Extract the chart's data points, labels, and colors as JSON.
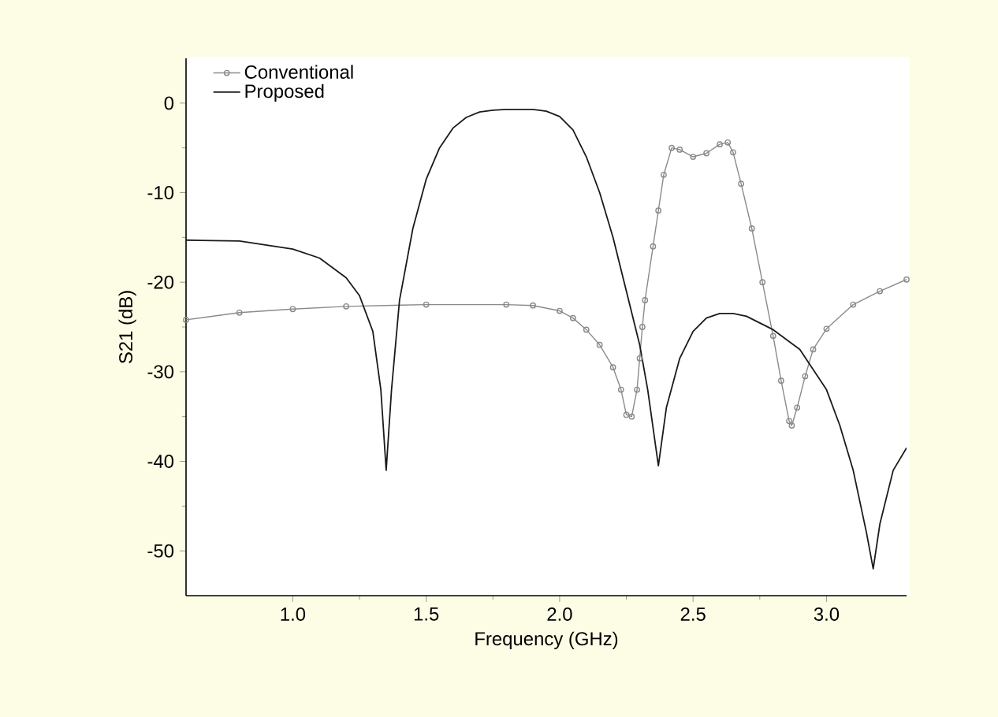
{
  "chart_data": {
    "type": "line",
    "xlabel": "Frequency (GHz)",
    "ylabel": "S21 (dB)",
    "xlim": [
      0.6,
      3.3
    ],
    "ylim": [
      -55,
      5
    ],
    "xticks": [
      {
        "value": 1,
        "label": "1.0"
      },
      {
        "value": 1.5,
        "label": "1.5"
      },
      {
        "value": 2,
        "label": "2.0"
      },
      {
        "value": 2.5,
        "label": "2.5"
      },
      {
        "value": 3,
        "label": "3.0"
      }
    ],
    "yticks": [
      0,
      -10,
      -20,
      -30,
      -40,
      -50
    ],
    "grid": false,
    "legend": "top left",
    "series": [
      {
        "name": "Conventional",
        "color": "#8a8a8a",
        "marker": "circle",
        "x": [
          0.6,
          0.8,
          1.0,
          1.2,
          1.5,
          1.8,
          1.9,
          2.0,
          2.05,
          2.1,
          2.15,
          2.2,
          2.23,
          2.25,
          2.27,
          2.29,
          2.3,
          2.31,
          2.32,
          2.35,
          2.37,
          2.39,
          2.42,
          2.45,
          2.5,
          2.55,
          2.6,
          2.63,
          2.65,
          2.68,
          2.72,
          2.76,
          2.8,
          2.83,
          2.86,
          2.87,
          2.89,
          2.92,
          2.95,
          3.0,
          3.1,
          3.2,
          3.3
        ],
        "values": [
          -24.2,
          -23.4,
          -23,
          -22.7,
          -22.5,
          -22.5,
          -22.6,
          -23.2,
          -24,
          -25.3,
          -27,
          -29.5,
          -32,
          -34.8,
          -35,
          -32,
          -28.5,
          -25,
          -22,
          -16,
          -12,
          -8,
          -5,
          -5.2,
          -6,
          -5.6,
          -4.6,
          -4.4,
          -5.5,
          -9,
          -14,
          -20,
          -26,
          -31,
          -35.5,
          -36,
          -34,
          -30.5,
          -27.5,
          -25.2,
          -22.5,
          -21,
          -19.7
        ]
      },
      {
        "name": "Proposed",
        "color": "#1a1a1a",
        "marker": "none",
        "x": [
          0.6,
          0.8,
          1.0,
          1.1,
          1.2,
          1.25,
          1.3,
          1.33,
          1.35,
          1.37,
          1.4,
          1.45,
          1.5,
          1.55,
          1.6,
          1.65,
          1.7,
          1.75,
          1.8,
          1.9,
          1.95,
          2.0,
          2.05,
          2.1,
          2.15,
          2.2,
          2.25,
          2.3,
          2.33,
          2.37,
          2.4,
          2.45,
          2.5,
          2.55,
          2.6,
          2.65,
          2.7,
          2.8,
          2.9,
          3.0,
          3.05,
          3.1,
          3.15,
          3.175,
          3.2,
          3.25,
          3.3
        ],
        "values": [
          -15.3,
          -15.4,
          -16.3,
          -17.3,
          -19.5,
          -21.5,
          -25.5,
          -32,
          -41,
          -32,
          -22,
          -14,
          -8.5,
          -5,
          -2.8,
          -1.6,
          -1,
          -0.8,
          -0.7,
          -0.7,
          -0.9,
          -1.5,
          -3,
          -6,
          -10,
          -15,
          -21,
          -27,
          -32,
          -40.5,
          -34,
          -28.5,
          -25.5,
          -24,
          -23.5,
          -23.5,
          -23.8,
          -25.3,
          -27.5,
          -32,
          -36,
          -41,
          -48,
          -52,
          -47,
          -41,
          -38.5
        ]
      }
    ]
  }
}
